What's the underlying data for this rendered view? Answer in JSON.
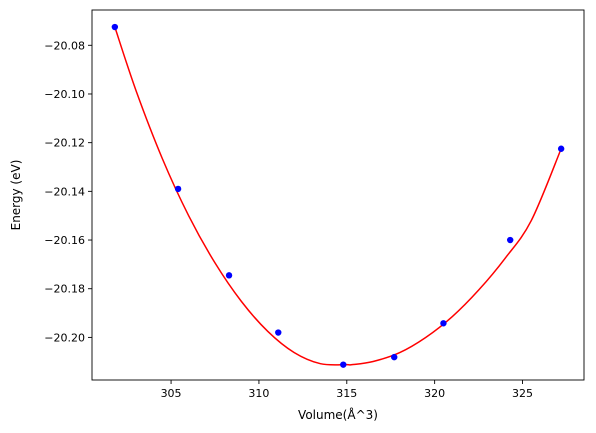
{
  "chart_data": {
    "type": "scatter",
    "xlabel": "Volume(Å^3)",
    "ylabel": "Energy (eV)",
    "xlim": [
      300.5,
      328.5
    ],
    "ylim": [
      -20.2175,
      -20.0655
    ],
    "x_ticks": [
      305,
      310,
      315,
      320,
      325
    ],
    "x_tick_labels": [
      "305",
      "310",
      "315",
      "320",
      "325"
    ],
    "y_ticks": [
      -20.08,
      -20.1,
      -20.12,
      -20.14,
      -20.16,
      -20.18,
      -20.2
    ],
    "y_tick_labels": [
      "−20.08",
      "−20.10",
      "−20.12",
      "−20.14",
      "−20.16",
      "−20.18",
      "−20.20"
    ],
    "grid": false,
    "series": [
      {
        "kind": "points",
        "color": "#0000ff",
        "x": [
          301.8,
          305.4,
          308.3,
          311.1,
          314.8,
          317.7,
          320.5,
          324.3,
          327.2
        ],
        "y": [
          -20.0725,
          -20.139,
          -20.1745,
          -20.198,
          -20.2112,
          -20.2081,
          -20.1942,
          -20.16,
          -20.1225
        ]
      },
      {
        "kind": "fit-curve",
        "color": "#ff0000",
        "x": [
          301.8,
          303.0,
          304.5,
          306.0,
          307.5,
          309.0,
          310.5,
          312.0,
          313.5,
          315.0,
          315.3,
          316.5,
          318.0,
          319.5,
          321.0,
          322.5,
          324.0,
          325.5,
          327.2
        ],
        "y": [
          -20.0725,
          -20.0985,
          -20.1265,
          -20.15,
          -20.1694,
          -20.1852,
          -20.1975,
          -20.2062,
          -20.2108,
          -20.2112,
          -20.2112,
          -20.2099,
          -20.2063,
          -20.2,
          -20.1915,
          -20.1806,
          -20.1676,
          -20.152,
          -20.1225
        ]
      }
    ]
  }
}
